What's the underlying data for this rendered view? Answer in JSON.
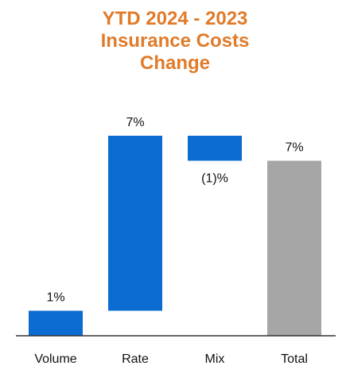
{
  "chart_data": {
    "type": "bar",
    "subtype": "waterfall",
    "title": "YTD 2024 - 2023\nInsurance Costs\nChange",
    "categories": [
      "Volume",
      "Rate",
      "Mix",
      "Total"
    ],
    "values": [
      1,
      7,
      -1,
      7
    ],
    "value_labels": [
      "1%",
      "7%",
      "(1)%",
      "7%"
    ],
    "ylim": [
      0,
      9
    ],
    "grid": false,
    "legend": "none",
    "colors": {
      "title": "#E07B2A",
      "bar": "#0A6BD0",
      "total": "#A6A6A6",
      "axis": "#333333"
    }
  }
}
